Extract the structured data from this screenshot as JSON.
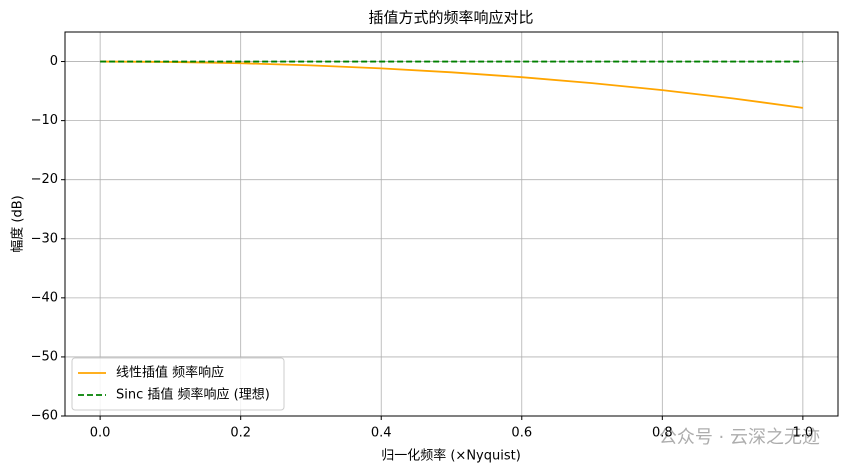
{
  "chart_data": {
    "type": "line",
    "title": "插值方式的频率响应对比",
    "x_label": "归一化频率 (×Nyquist)",
    "y_label": "幅度 (dB)",
    "x": [
      0.0,
      0.1,
      0.2,
      0.3,
      0.4,
      0.5,
      0.6,
      0.7,
      0.8,
      0.9,
      1.0
    ],
    "series": [
      {
        "name": "线性插值 频率响应",
        "color": "#ffa500",
        "dash": false,
        "values": [
          0,
          -0.07,
          -0.29,
          -0.65,
          -1.16,
          -1.82,
          -2.65,
          -3.65,
          -4.84,
          -6.23,
          -7.84
        ]
      },
      {
        "name": "Sinc 插值 频率响应 (理想)",
        "color": "#008000",
        "dash": true,
        "values": [
          0,
          0,
          0,
          0,
          0,
          0,
          0,
          0,
          0,
          0,
          0
        ]
      }
    ],
    "xlim": [
      -0.05,
      1.05
    ],
    "ylim": [
      -60,
      5
    ],
    "xticks": [
      {
        "value": 0,
        "label": "0.0"
      },
      0.2,
      0.4,
      0.6,
      0.8,
      {
        "value": 1,
        "label": "1.0"
      }
    ],
    "yticks": [
      {
        "value": -60,
        "label": "−60"
      },
      {
        "value": -50,
        "label": "−50"
      },
      {
        "value": -40,
        "label": "−40"
      },
      {
        "value": -30,
        "label": "−30"
      },
      {
        "value": -20,
        "label": "−20"
      },
      {
        "value": -10,
        "label": "−10"
      },
      0
    ],
    "grid": true,
    "legend": "lower left",
    "watermark": "公众号 · 云深之无迹"
  }
}
